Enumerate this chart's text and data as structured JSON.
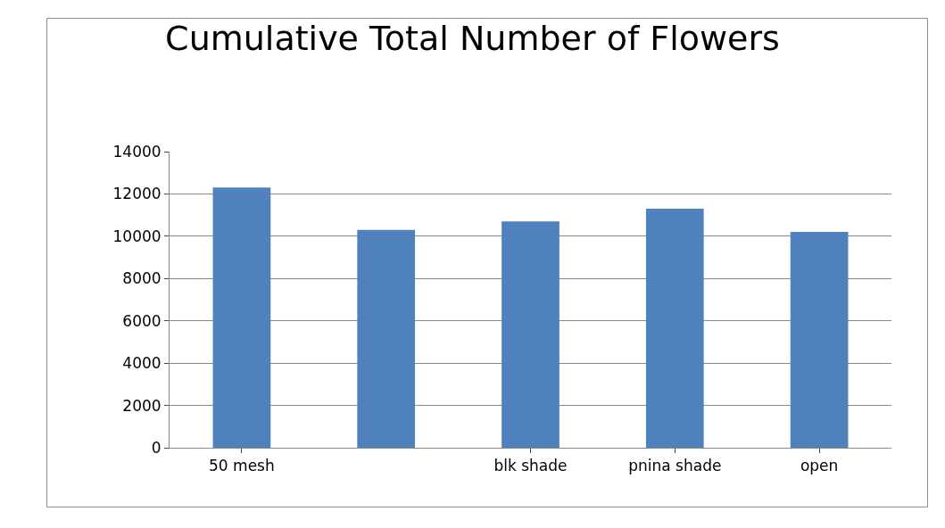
{
  "chart_data": {
    "type": "bar",
    "title": "Cumulative Total Number of Flowers",
    "categories": [
      "50 mesh",
      null,
      "blk shade",
      "pnina shade",
      "open"
    ],
    "values": [
      12300,
      10300,
      10700,
      11300,
      10200
    ],
    "color": "#4f81bd",
    "ylim": [
      0,
      14000
    ],
    "yticks": [
      0,
      2000,
      4000,
      6000,
      8000,
      10000,
      12000,
      14000
    ],
    "grid": "y",
    "legend": false
  }
}
